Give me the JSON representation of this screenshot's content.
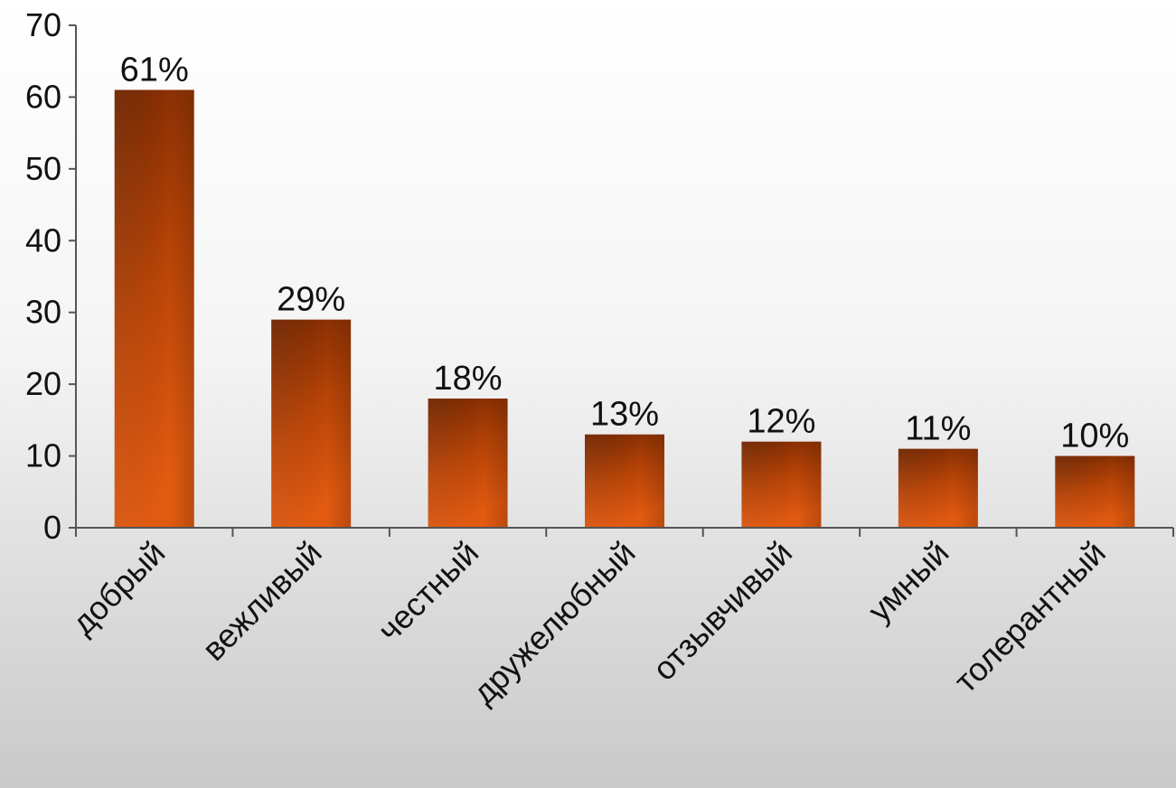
{
  "chart_data": {
    "type": "bar",
    "categories": [
      "добрый",
      "вежливый",
      "честный",
      "дружелюбный",
      "отзывчивый",
      "умный",
      "толерантный"
    ],
    "values": [
      61,
      29,
      18,
      13,
      12,
      11,
      10
    ],
    "data_labels": [
      "61%",
      "29%",
      "18%",
      "13%",
      "12%",
      "11%",
      "10%"
    ],
    "ylim": [
      0,
      70
    ],
    "yticks": [
      0,
      10,
      20,
      30,
      40,
      50,
      60,
      70
    ],
    "ytick_labels": [
      "0",
      "10",
      "20",
      "30",
      "40",
      "50",
      "60",
      "70"
    ],
    "grid": false,
    "legend": "none",
    "colors": {
      "bar_light": "#e25a10",
      "bar_dark": "#6e2400",
      "axis": "#555555",
      "text": "#111111"
    }
  }
}
